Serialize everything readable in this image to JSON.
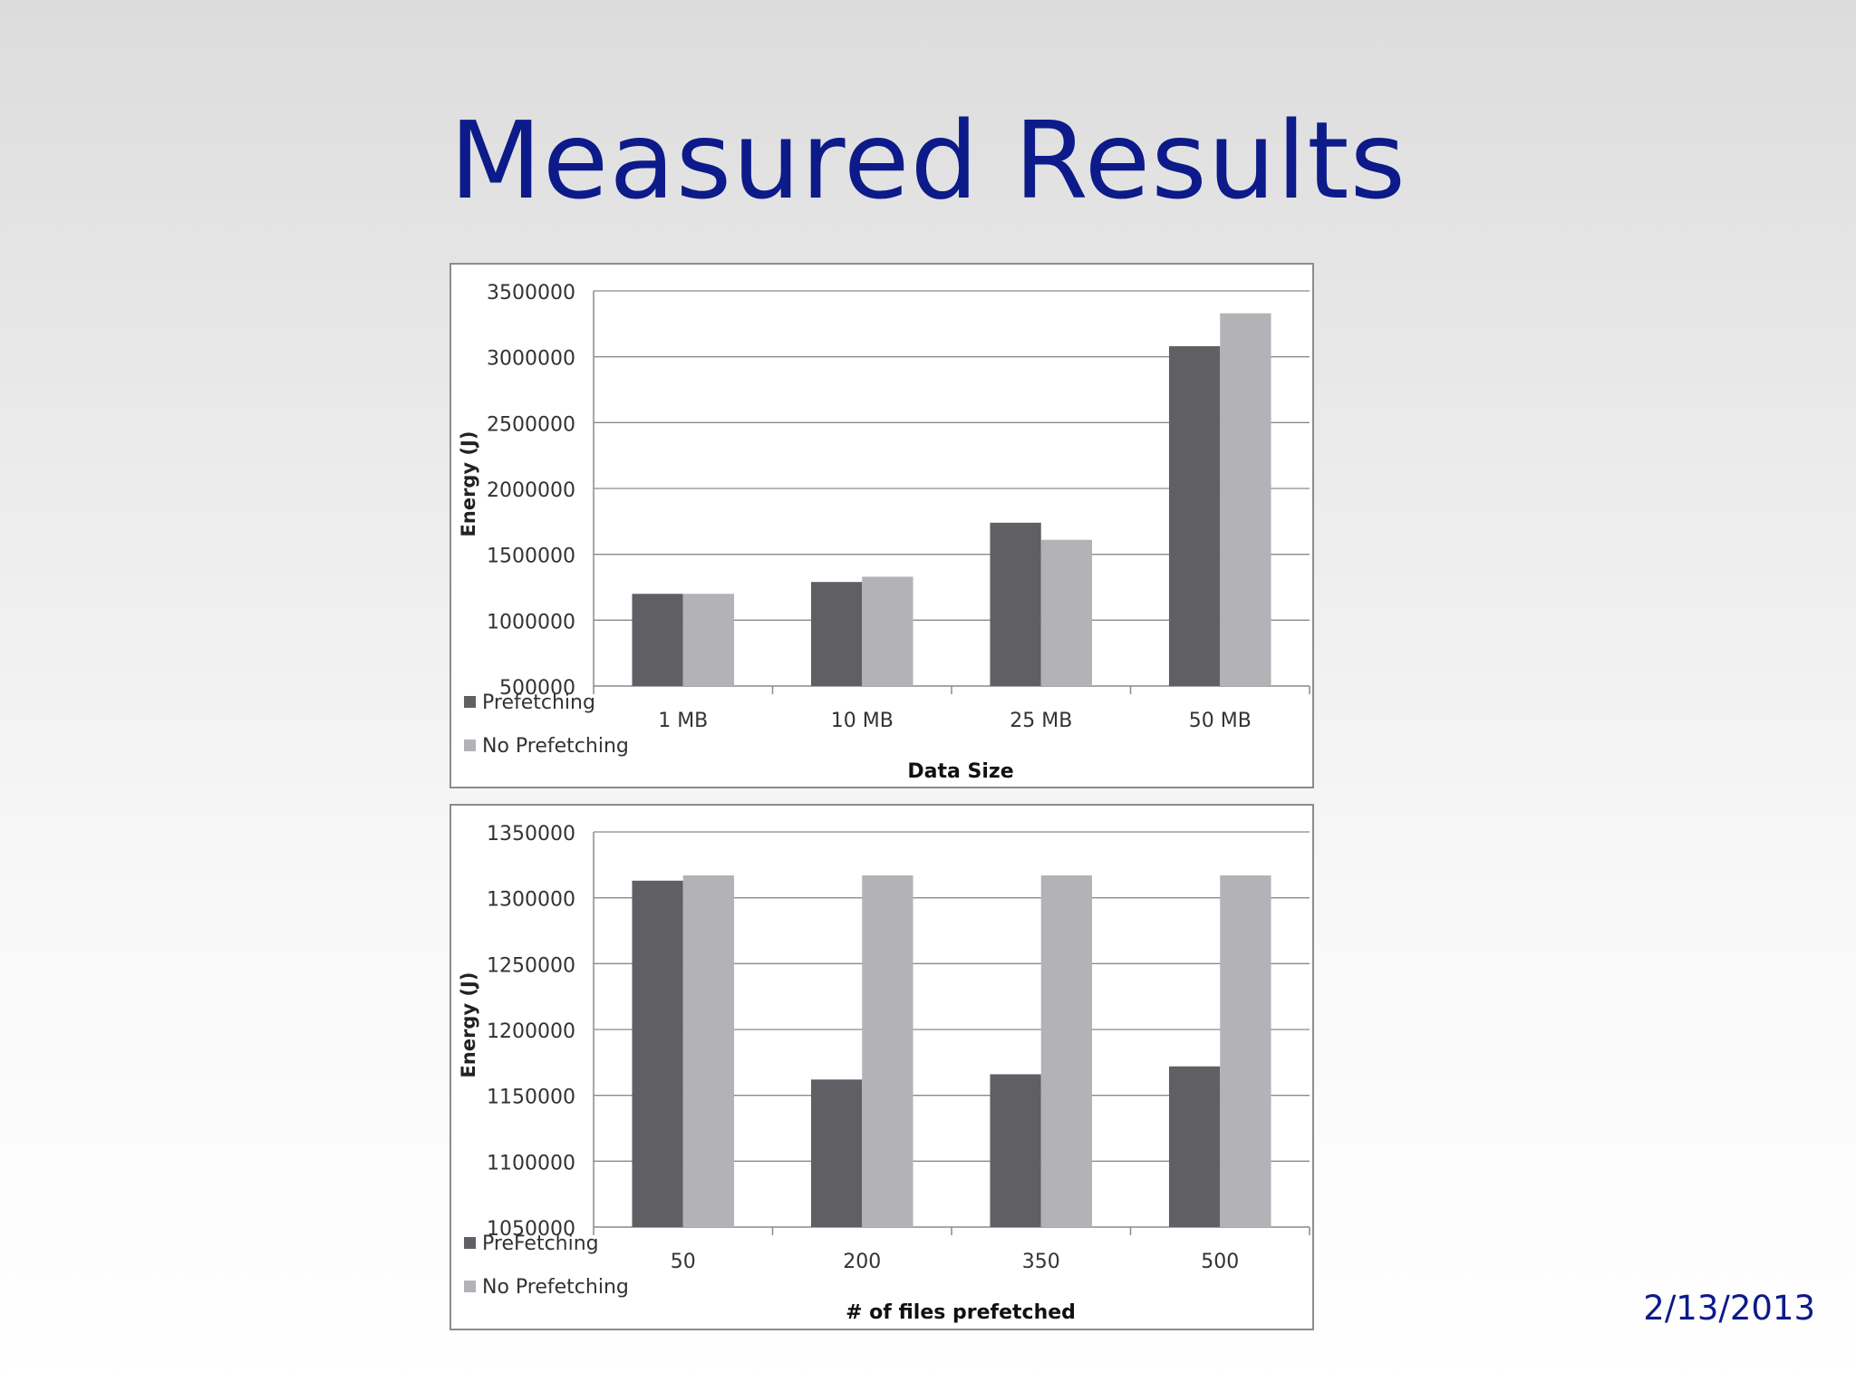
{
  "slide": {
    "title": "Measured Results",
    "date": "2/13/2013"
  },
  "colors": {
    "title": "#0d1a8a",
    "prefetching": "#605f64",
    "no_prefetching": "#b3b2b6",
    "gridline": "#8a8a8a"
  },
  "chart_data": [
    {
      "type": "bar",
      "categories": [
        "1 MB",
        "10 MB",
        "25 MB",
        "50 MB"
      ],
      "series": [
        {
          "name": "Prefetching",
          "values": [
            1200000,
            1290000,
            1740000,
            3080000
          ]
        },
        {
          "name": "No Prefetching",
          "values": [
            1200000,
            1330000,
            1610000,
            3330000
          ]
        }
      ],
      "xlabel": "Data Size",
      "ylabel": "Energy (J)",
      "ylim": [
        500000,
        3500000
      ],
      "yticks": [
        500000,
        1000000,
        1500000,
        2000000,
        2500000,
        3000000,
        3500000
      ],
      "grid": true,
      "legend": "bottom-left"
    },
    {
      "type": "bar",
      "categories": [
        "50",
        "200",
        "350",
        "500"
      ],
      "series": [
        {
          "name": "PreFetching",
          "values": [
            1313000,
            1162000,
            1166000,
            1172000
          ]
        },
        {
          "name": "No Prefetching",
          "values": [
            1317000,
            1317000,
            1317000,
            1317000
          ]
        }
      ],
      "xlabel": "# of files prefetched",
      "ylabel": "Energy (J)",
      "ylim": [
        1050000,
        1350000
      ],
      "yticks": [
        1050000,
        1100000,
        1150000,
        1200000,
        1250000,
        1300000,
        1350000
      ],
      "grid": true,
      "legend": "bottom-left"
    }
  ]
}
